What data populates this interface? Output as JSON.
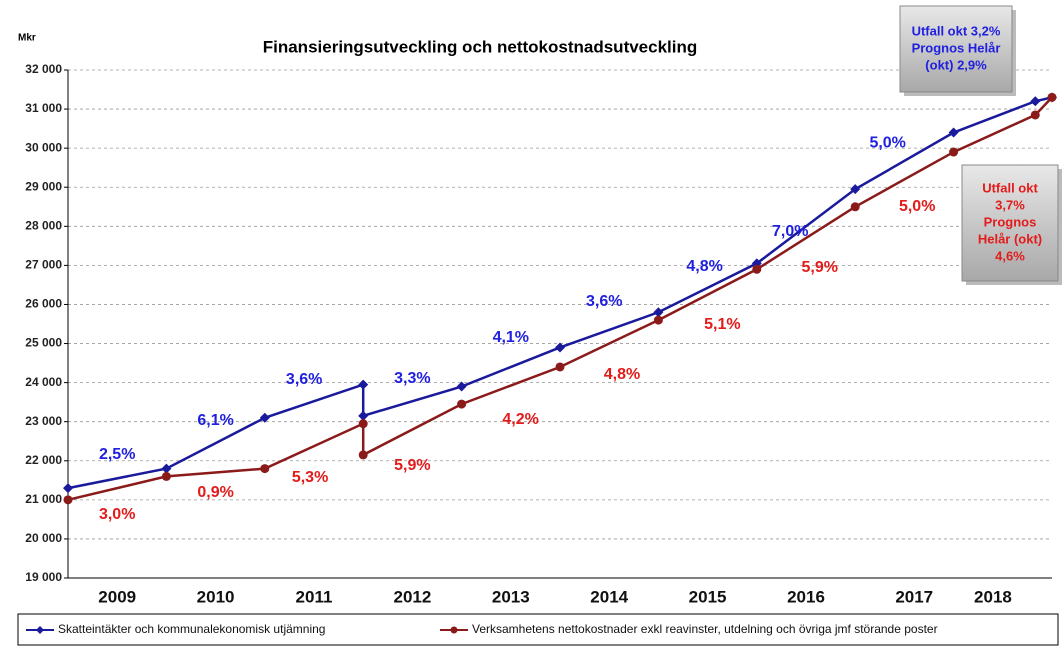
{
  "chart_data": {
    "type": "line",
    "title": "Finansieringsutveckling och nettokostnadsutveckling",
    "y_label": "Mkr",
    "x": [
      0,
      1,
      2,
      3,
      3,
      4,
      5,
      6,
      7,
      8,
      9,
      9.83,
      10
    ],
    "xlim": [
      0,
      10
    ],
    "xticks": [
      {
        "value": 0.5,
        "label": "2009"
      },
      {
        "value": 1.5,
        "label": "2010"
      },
      {
        "value": 2.5,
        "label": "2011"
      },
      {
        "value": 3.5,
        "label": "2012"
      },
      {
        "value": 4.5,
        "label": "2013"
      },
      {
        "value": 5.5,
        "label": "2014"
      },
      {
        "value": 6.5,
        "label": "2015"
      },
      {
        "value": 7.5,
        "label": "2016"
      },
      {
        "value": 8.6,
        "label": "2017"
      },
      {
        "value": 9.4,
        "label": "2018"
      }
    ],
    "ylim": [
      19000,
      32000
    ],
    "yticks": [
      {
        "value": 19000,
        "label": "19 000"
      },
      {
        "value": 20000,
        "label": "20 000"
      },
      {
        "value": 21000,
        "label": "21 000"
      },
      {
        "value": 22000,
        "label": "22 000"
      },
      {
        "value": 23000,
        "label": "23 000"
      },
      {
        "value": 24000,
        "label": "24 000"
      },
      {
        "value": 25000,
        "label": "25 000"
      },
      {
        "value": 26000,
        "label": "26 000"
      },
      {
        "value": 27000,
        "label": "27 000"
      },
      {
        "value": 28000,
        "label": "28 000"
      },
      {
        "value": 29000,
        "label": "29 000"
      },
      {
        "value": 30000,
        "label": "30 000"
      },
      {
        "value": 31000,
        "label": "31 000"
      },
      {
        "value": 32000,
        "label": "32 000"
      }
    ],
    "grid": true,
    "series": [
      {
        "name": "Skatteintäkter och kommunalekonomisk utjämning",
        "color": "#1a1a9c",
        "marker": "diamond",
        "label_color": "#1f1fe0",
        "values": [
          21300,
          21800,
          23100,
          23950,
          23150,
          23900,
          24900,
          25800,
          27050,
          28950,
          30400,
          31200,
          31300
        ]
      },
      {
        "name": "Verksamhetens nettokostnader exkl reavinster, utdelning och övriga  jmf störande poster",
        "color": "#8b1a1a",
        "marker": "circle",
        "label_color": "#e31b1b",
        "values": [
          21000,
          21600,
          21800,
          22950,
          22150,
          23450,
          24400,
          25600,
          26900,
          28500,
          29900,
          30850,
          31300
        ]
      }
    ],
    "annotations": [
      {
        "text": "2,5%",
        "series": 0,
        "x": 0.5,
        "y": 22150
      },
      {
        "text": "6,1%",
        "series": 0,
        "x": 1.5,
        "y": 23020
      },
      {
        "text": "3,6%",
        "series": 0,
        "x": 2.4,
        "y": 24070
      },
      {
        "text": "3,3%",
        "series": 0,
        "x": 3.5,
        "y": 24100
      },
      {
        "text": "4,1%",
        "series": 0,
        "x": 4.5,
        "y": 25150
      },
      {
        "text": "3,6%",
        "series": 0,
        "x": 5.45,
        "y": 26070
      },
      {
        "text": "4,8%",
        "series": 0,
        "x": 6.47,
        "y": 26960
      },
      {
        "text": "7,0%",
        "series": 0,
        "x": 7.34,
        "y": 27860
      },
      {
        "text": "5,0%",
        "series": 0,
        "x": 8.33,
        "y": 30130
      },
      {
        "text": "3,0%",
        "series": 1,
        "x": 0.5,
        "y": 20620
      },
      {
        "text": "0,9%",
        "series": 1,
        "x": 1.5,
        "y": 21180
      },
      {
        "text": "5,3%",
        "series": 1,
        "x": 2.46,
        "y": 21570
      },
      {
        "text": "5,9%",
        "series": 1,
        "x": 3.5,
        "y": 21870
      },
      {
        "text": "4,2%",
        "series": 1,
        "x": 4.6,
        "y": 23050
      },
      {
        "text": "4,8%",
        "series": 1,
        "x": 5.63,
        "y": 24200
      },
      {
        "text": "5,1%",
        "series": 1,
        "x": 6.65,
        "y": 25480
      },
      {
        "text": "5,9%",
        "series": 1,
        "x": 7.64,
        "y": 26940
      },
      {
        "text": "5,0%",
        "series": 1,
        "x": 8.63,
        "y": 28500
      }
    ],
    "boxes": [
      {
        "series": 0,
        "lines": [
          "Utfall okt 3,2%",
          "Prognos Helår",
          "(okt) 2,9%"
        ]
      },
      {
        "series": 1,
        "lines": [
          "Utfall okt",
          "3,7%",
          "Prognos",
          "Helår (okt)",
          "4,6%"
        ]
      }
    ]
  }
}
